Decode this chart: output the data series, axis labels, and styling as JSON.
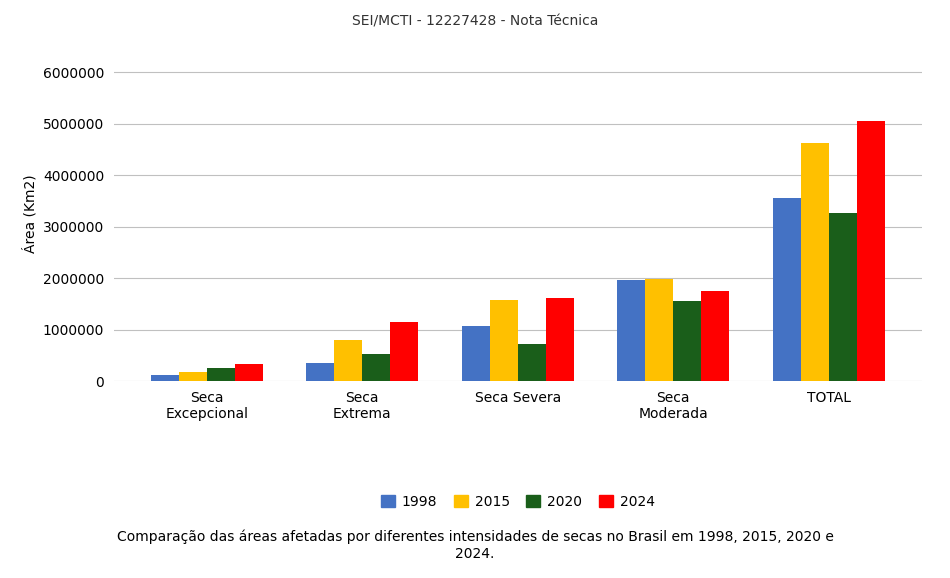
{
  "categories": [
    "Seca\nExcepcional",
    "Seca\nExtrema",
    "Seca Severa",
    "Seca\nModerada",
    "TOTAL"
  ],
  "series": {
    "1998": [
      120000,
      350000,
      1080000,
      1960000,
      3560000
    ],
    "2015": [
      180000,
      800000,
      1580000,
      1980000,
      4620000
    ],
    "2020": [
      270000,
      530000,
      730000,
      1570000,
      3270000
    ],
    "2024": [
      330000,
      1150000,
      1620000,
      1760000,
      5050000
    ]
  },
  "colors": {
    "1998": "#4472C4",
    "2015": "#FFC000",
    "2020": "#1A5E1A",
    "2024": "#FF0000"
  },
  "legend_labels": [
    "1998",
    "2015",
    "2020",
    "2024"
  ],
  "ylabel": "Área (Km2)",
  "ylim": [
    0,
    6500000
  ],
  "yticks": [
    0,
    1000000,
    2000000,
    3000000,
    4000000,
    5000000,
    6000000
  ],
  "title": "SEI/MCTI - 12227428 - Nota Técnica",
  "caption": "Comparação das áreas afetadas por diferentes intensidades de secas no Brasil em 1998, 2015, 2020 e\n2024.",
  "background_color": "#FFFFFF",
  "bar_width": 0.18,
  "grid_color": "#C0C0C0"
}
